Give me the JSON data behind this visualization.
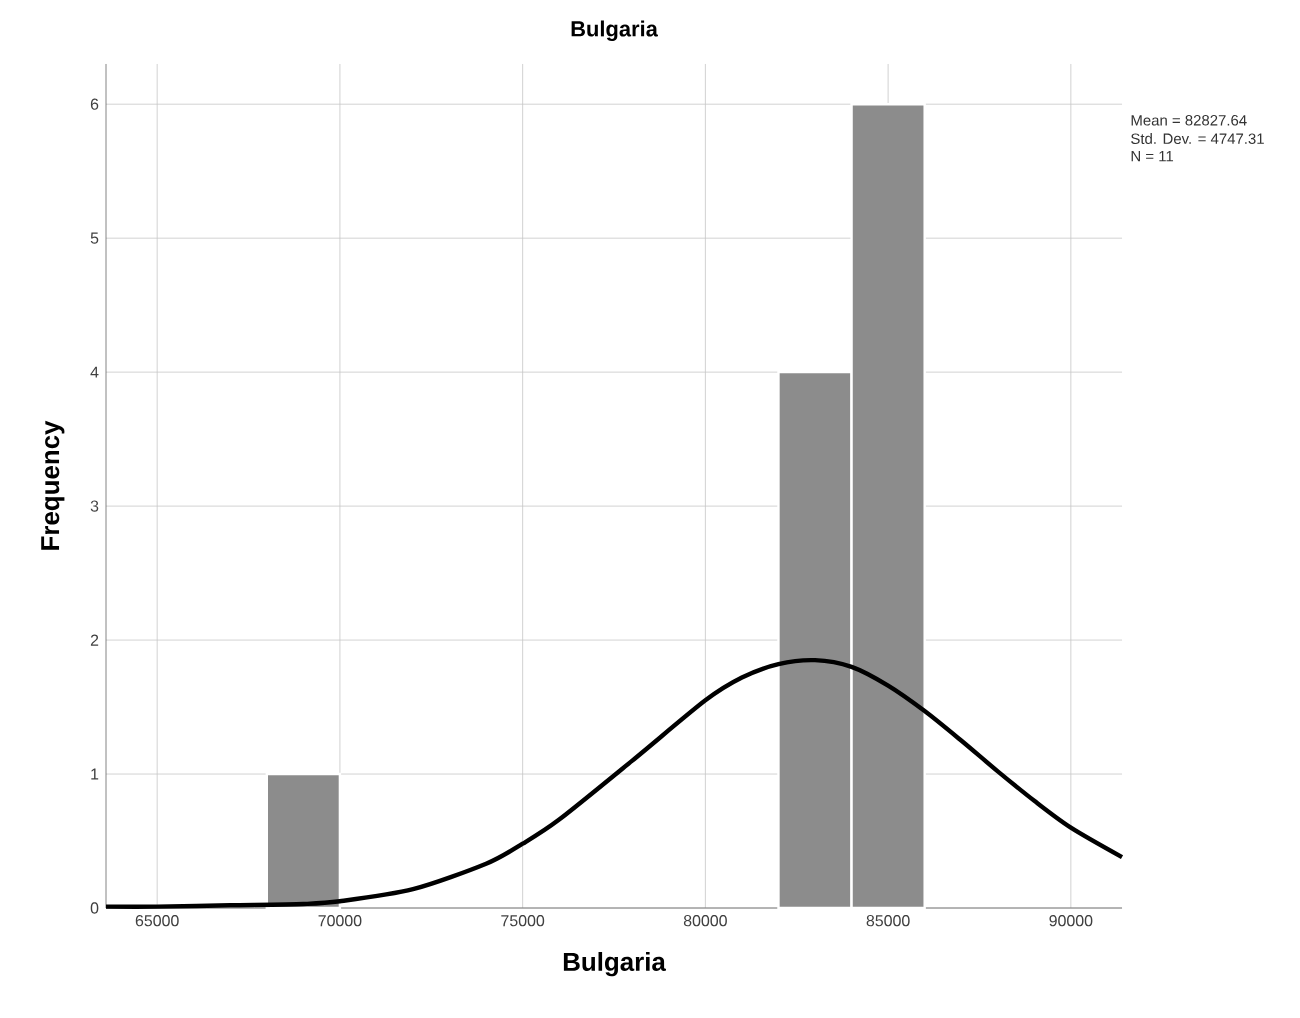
{
  "chart_data": {
    "type": "histogram",
    "title": "Bulgaria",
    "xlabel": "Bulgaria",
    "ylabel": "Frequency",
    "annotations": [
      "Mean = 82827.64",
      "Std. Dev. = 4747.31",
      "N = 11"
    ],
    "xlim": [
      63600,
      91400
    ],
    "ylim": [
      0,
      6.3
    ],
    "xticks": [
      65000,
      70000,
      75000,
      80000,
      85000,
      90000
    ],
    "yticks": [
      0,
      1,
      2,
      3,
      4,
      5,
      6
    ],
    "grid": true,
    "series": [
      {
        "color": "#8c8c8c",
        "bins": [
          68000,
          70000,
          72000,
          74000,
          76000,
          78000,
          80000,
          82000,
          84000,
          86000
        ],
        "values": [
          1,
          0,
          0,
          0,
          0,
          0,
          0,
          4,
          6
        ]
      },
      {
        "type": "line",
        "color": "#000000",
        "x": [
          63600,
          65000,
          67000,
          69000,
          70000,
          72000,
          74000,
          75000,
          76000,
          78000,
          80000,
          81000,
          82000,
          83000,
          84000,
          85000,
          86000,
          87000,
          88000,
          89000,
          90000,
          91400
        ],
        "values": [
          0.01,
          0.01,
          0.02,
          0.03,
          0.05,
          0.14,
          0.33,
          0.48,
          0.66,
          1.1,
          1.55,
          1.72,
          1.82,
          1.85,
          1.8,
          1.66,
          1.47,
          1.25,
          1.02,
          0.8,
          0.6,
          0.38
        ]
      }
    ]
  }
}
